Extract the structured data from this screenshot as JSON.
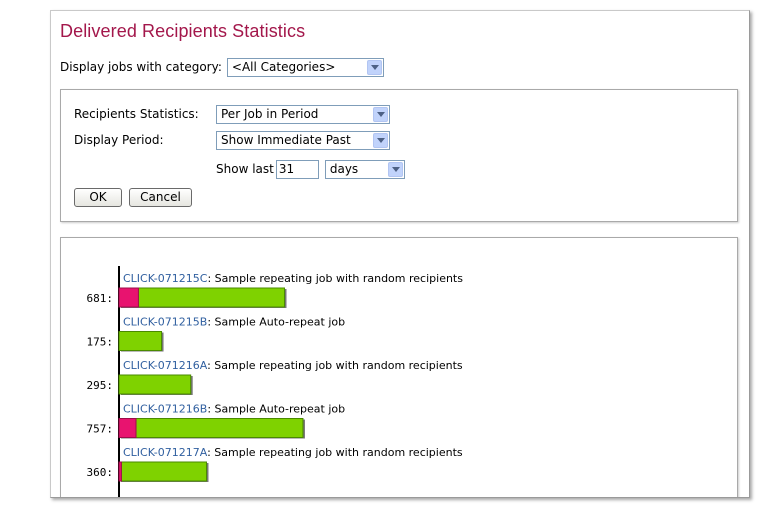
{
  "title": "Delivered Recipients Statistics",
  "category_filter": {
    "label": "Display jobs with category:",
    "selected": "<All Categories>"
  },
  "form": {
    "recipients_statistics": {
      "label": "Recipients Statistics:",
      "selected": "Per Job in Period"
    },
    "display_period": {
      "label": "Display Period:",
      "selected": "Show Immediate Past"
    },
    "show_last": {
      "label": "Show last",
      "value": "31",
      "unit": "days"
    },
    "ok_label": "OK",
    "cancel_label": "Cancel"
  },
  "colors": {
    "accent": "#a3174b",
    "bar_total": "#7fd200",
    "bar_highlight": "#e8136f",
    "link": "#3160a0"
  },
  "chart_data": {
    "type": "bar",
    "orientation": "horizontal",
    "stacked": true,
    "jobs": [
      {
        "id": "CLICK-071215C",
        "description": ": Sample repeating job with random recipients",
        "label": "681:",
        "total": 681,
        "highlight": 80
      },
      {
        "id": "CLICK-071215B",
        "description": ": Sample Auto-repeat job",
        "label": "175:",
        "total": 175,
        "highlight": 0
      },
      {
        "id": "CLICK-071216A",
        "description": ": Sample repeating job with random recipients",
        "label": "295:",
        "total": 295,
        "highlight": 0
      },
      {
        "id": "CLICK-071216B",
        "description": ": Sample Auto-repeat job",
        "label": "757:",
        "total": 757,
        "highlight": 70
      },
      {
        "id": "CLICK-071217A",
        "description": ": Sample repeating job with random recipients",
        "label": "360:",
        "total": 360,
        "highlight": 10
      }
    ]
  }
}
